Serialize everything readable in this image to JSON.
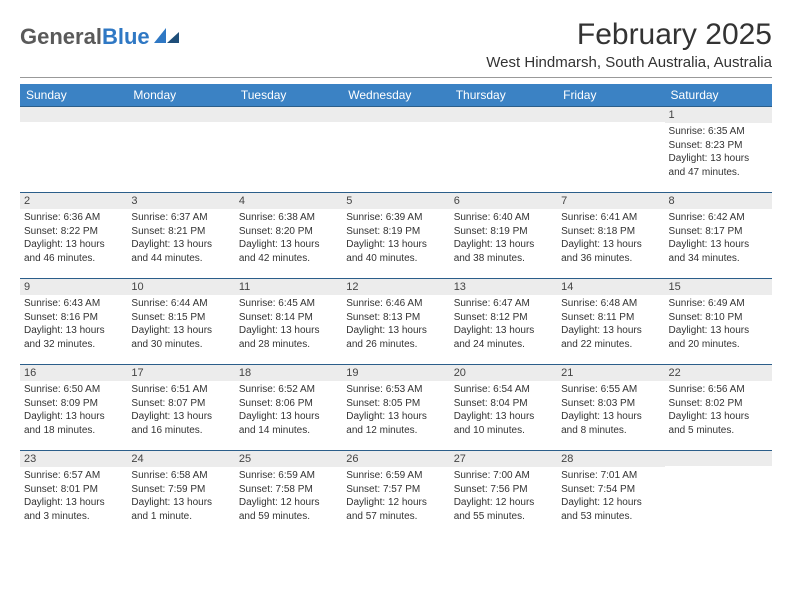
{
  "logo": {
    "part1": "General",
    "part2": "Blue"
  },
  "title": "February 2025",
  "location": "West Hindmarsh, South Australia, Australia",
  "colors": {
    "header_bg": "#3b82c4",
    "header_text": "#ffffff",
    "daynum_bg": "#ececec",
    "daynum_border": "#2b5e8a",
    "logo_gray": "#5a5a5a",
    "logo_blue": "#2f78c4",
    "body_text": "#333333",
    "divider": "#999999"
  },
  "columns": [
    "Sunday",
    "Monday",
    "Tuesday",
    "Wednesday",
    "Thursday",
    "Friday",
    "Saturday"
  ],
  "weeks": [
    [
      {
        "n": "",
        "sr": "",
        "ss": "",
        "dl": ""
      },
      {
        "n": "",
        "sr": "",
        "ss": "",
        "dl": ""
      },
      {
        "n": "",
        "sr": "",
        "ss": "",
        "dl": ""
      },
      {
        "n": "",
        "sr": "",
        "ss": "",
        "dl": ""
      },
      {
        "n": "",
        "sr": "",
        "ss": "",
        "dl": ""
      },
      {
        "n": "",
        "sr": "",
        "ss": "",
        "dl": ""
      },
      {
        "n": "1",
        "sr": "Sunrise: 6:35 AM",
        "ss": "Sunset: 8:23 PM",
        "dl": "Daylight: 13 hours and 47 minutes."
      }
    ],
    [
      {
        "n": "2",
        "sr": "Sunrise: 6:36 AM",
        "ss": "Sunset: 8:22 PM",
        "dl": "Daylight: 13 hours and 46 minutes."
      },
      {
        "n": "3",
        "sr": "Sunrise: 6:37 AM",
        "ss": "Sunset: 8:21 PM",
        "dl": "Daylight: 13 hours and 44 minutes."
      },
      {
        "n": "4",
        "sr": "Sunrise: 6:38 AM",
        "ss": "Sunset: 8:20 PM",
        "dl": "Daylight: 13 hours and 42 minutes."
      },
      {
        "n": "5",
        "sr": "Sunrise: 6:39 AM",
        "ss": "Sunset: 8:19 PM",
        "dl": "Daylight: 13 hours and 40 minutes."
      },
      {
        "n": "6",
        "sr": "Sunrise: 6:40 AM",
        "ss": "Sunset: 8:19 PM",
        "dl": "Daylight: 13 hours and 38 minutes."
      },
      {
        "n": "7",
        "sr": "Sunrise: 6:41 AM",
        "ss": "Sunset: 8:18 PM",
        "dl": "Daylight: 13 hours and 36 minutes."
      },
      {
        "n": "8",
        "sr": "Sunrise: 6:42 AM",
        "ss": "Sunset: 8:17 PM",
        "dl": "Daylight: 13 hours and 34 minutes."
      }
    ],
    [
      {
        "n": "9",
        "sr": "Sunrise: 6:43 AM",
        "ss": "Sunset: 8:16 PM",
        "dl": "Daylight: 13 hours and 32 minutes."
      },
      {
        "n": "10",
        "sr": "Sunrise: 6:44 AM",
        "ss": "Sunset: 8:15 PM",
        "dl": "Daylight: 13 hours and 30 minutes."
      },
      {
        "n": "11",
        "sr": "Sunrise: 6:45 AM",
        "ss": "Sunset: 8:14 PM",
        "dl": "Daylight: 13 hours and 28 minutes."
      },
      {
        "n": "12",
        "sr": "Sunrise: 6:46 AM",
        "ss": "Sunset: 8:13 PM",
        "dl": "Daylight: 13 hours and 26 minutes."
      },
      {
        "n": "13",
        "sr": "Sunrise: 6:47 AM",
        "ss": "Sunset: 8:12 PM",
        "dl": "Daylight: 13 hours and 24 minutes."
      },
      {
        "n": "14",
        "sr": "Sunrise: 6:48 AM",
        "ss": "Sunset: 8:11 PM",
        "dl": "Daylight: 13 hours and 22 minutes."
      },
      {
        "n": "15",
        "sr": "Sunrise: 6:49 AM",
        "ss": "Sunset: 8:10 PM",
        "dl": "Daylight: 13 hours and 20 minutes."
      }
    ],
    [
      {
        "n": "16",
        "sr": "Sunrise: 6:50 AM",
        "ss": "Sunset: 8:09 PM",
        "dl": "Daylight: 13 hours and 18 minutes."
      },
      {
        "n": "17",
        "sr": "Sunrise: 6:51 AM",
        "ss": "Sunset: 8:07 PM",
        "dl": "Daylight: 13 hours and 16 minutes."
      },
      {
        "n": "18",
        "sr": "Sunrise: 6:52 AM",
        "ss": "Sunset: 8:06 PM",
        "dl": "Daylight: 13 hours and 14 minutes."
      },
      {
        "n": "19",
        "sr": "Sunrise: 6:53 AM",
        "ss": "Sunset: 8:05 PM",
        "dl": "Daylight: 13 hours and 12 minutes."
      },
      {
        "n": "20",
        "sr": "Sunrise: 6:54 AM",
        "ss": "Sunset: 8:04 PM",
        "dl": "Daylight: 13 hours and 10 minutes."
      },
      {
        "n": "21",
        "sr": "Sunrise: 6:55 AM",
        "ss": "Sunset: 8:03 PM",
        "dl": "Daylight: 13 hours and 8 minutes."
      },
      {
        "n": "22",
        "sr": "Sunrise: 6:56 AM",
        "ss": "Sunset: 8:02 PM",
        "dl": "Daylight: 13 hours and 5 minutes."
      }
    ],
    [
      {
        "n": "23",
        "sr": "Sunrise: 6:57 AM",
        "ss": "Sunset: 8:01 PM",
        "dl": "Daylight: 13 hours and 3 minutes."
      },
      {
        "n": "24",
        "sr": "Sunrise: 6:58 AM",
        "ss": "Sunset: 7:59 PM",
        "dl": "Daylight: 13 hours and 1 minute."
      },
      {
        "n": "25",
        "sr": "Sunrise: 6:59 AM",
        "ss": "Sunset: 7:58 PM",
        "dl": "Daylight: 12 hours and 59 minutes."
      },
      {
        "n": "26",
        "sr": "Sunrise: 6:59 AM",
        "ss": "Sunset: 7:57 PM",
        "dl": "Daylight: 12 hours and 57 minutes."
      },
      {
        "n": "27",
        "sr": "Sunrise: 7:00 AM",
        "ss": "Sunset: 7:56 PM",
        "dl": "Daylight: 12 hours and 55 minutes."
      },
      {
        "n": "28",
        "sr": "Sunrise: 7:01 AM",
        "ss": "Sunset: 7:54 PM",
        "dl": "Daylight: 12 hours and 53 minutes."
      },
      {
        "n": "",
        "sr": "",
        "ss": "",
        "dl": ""
      }
    ]
  ]
}
